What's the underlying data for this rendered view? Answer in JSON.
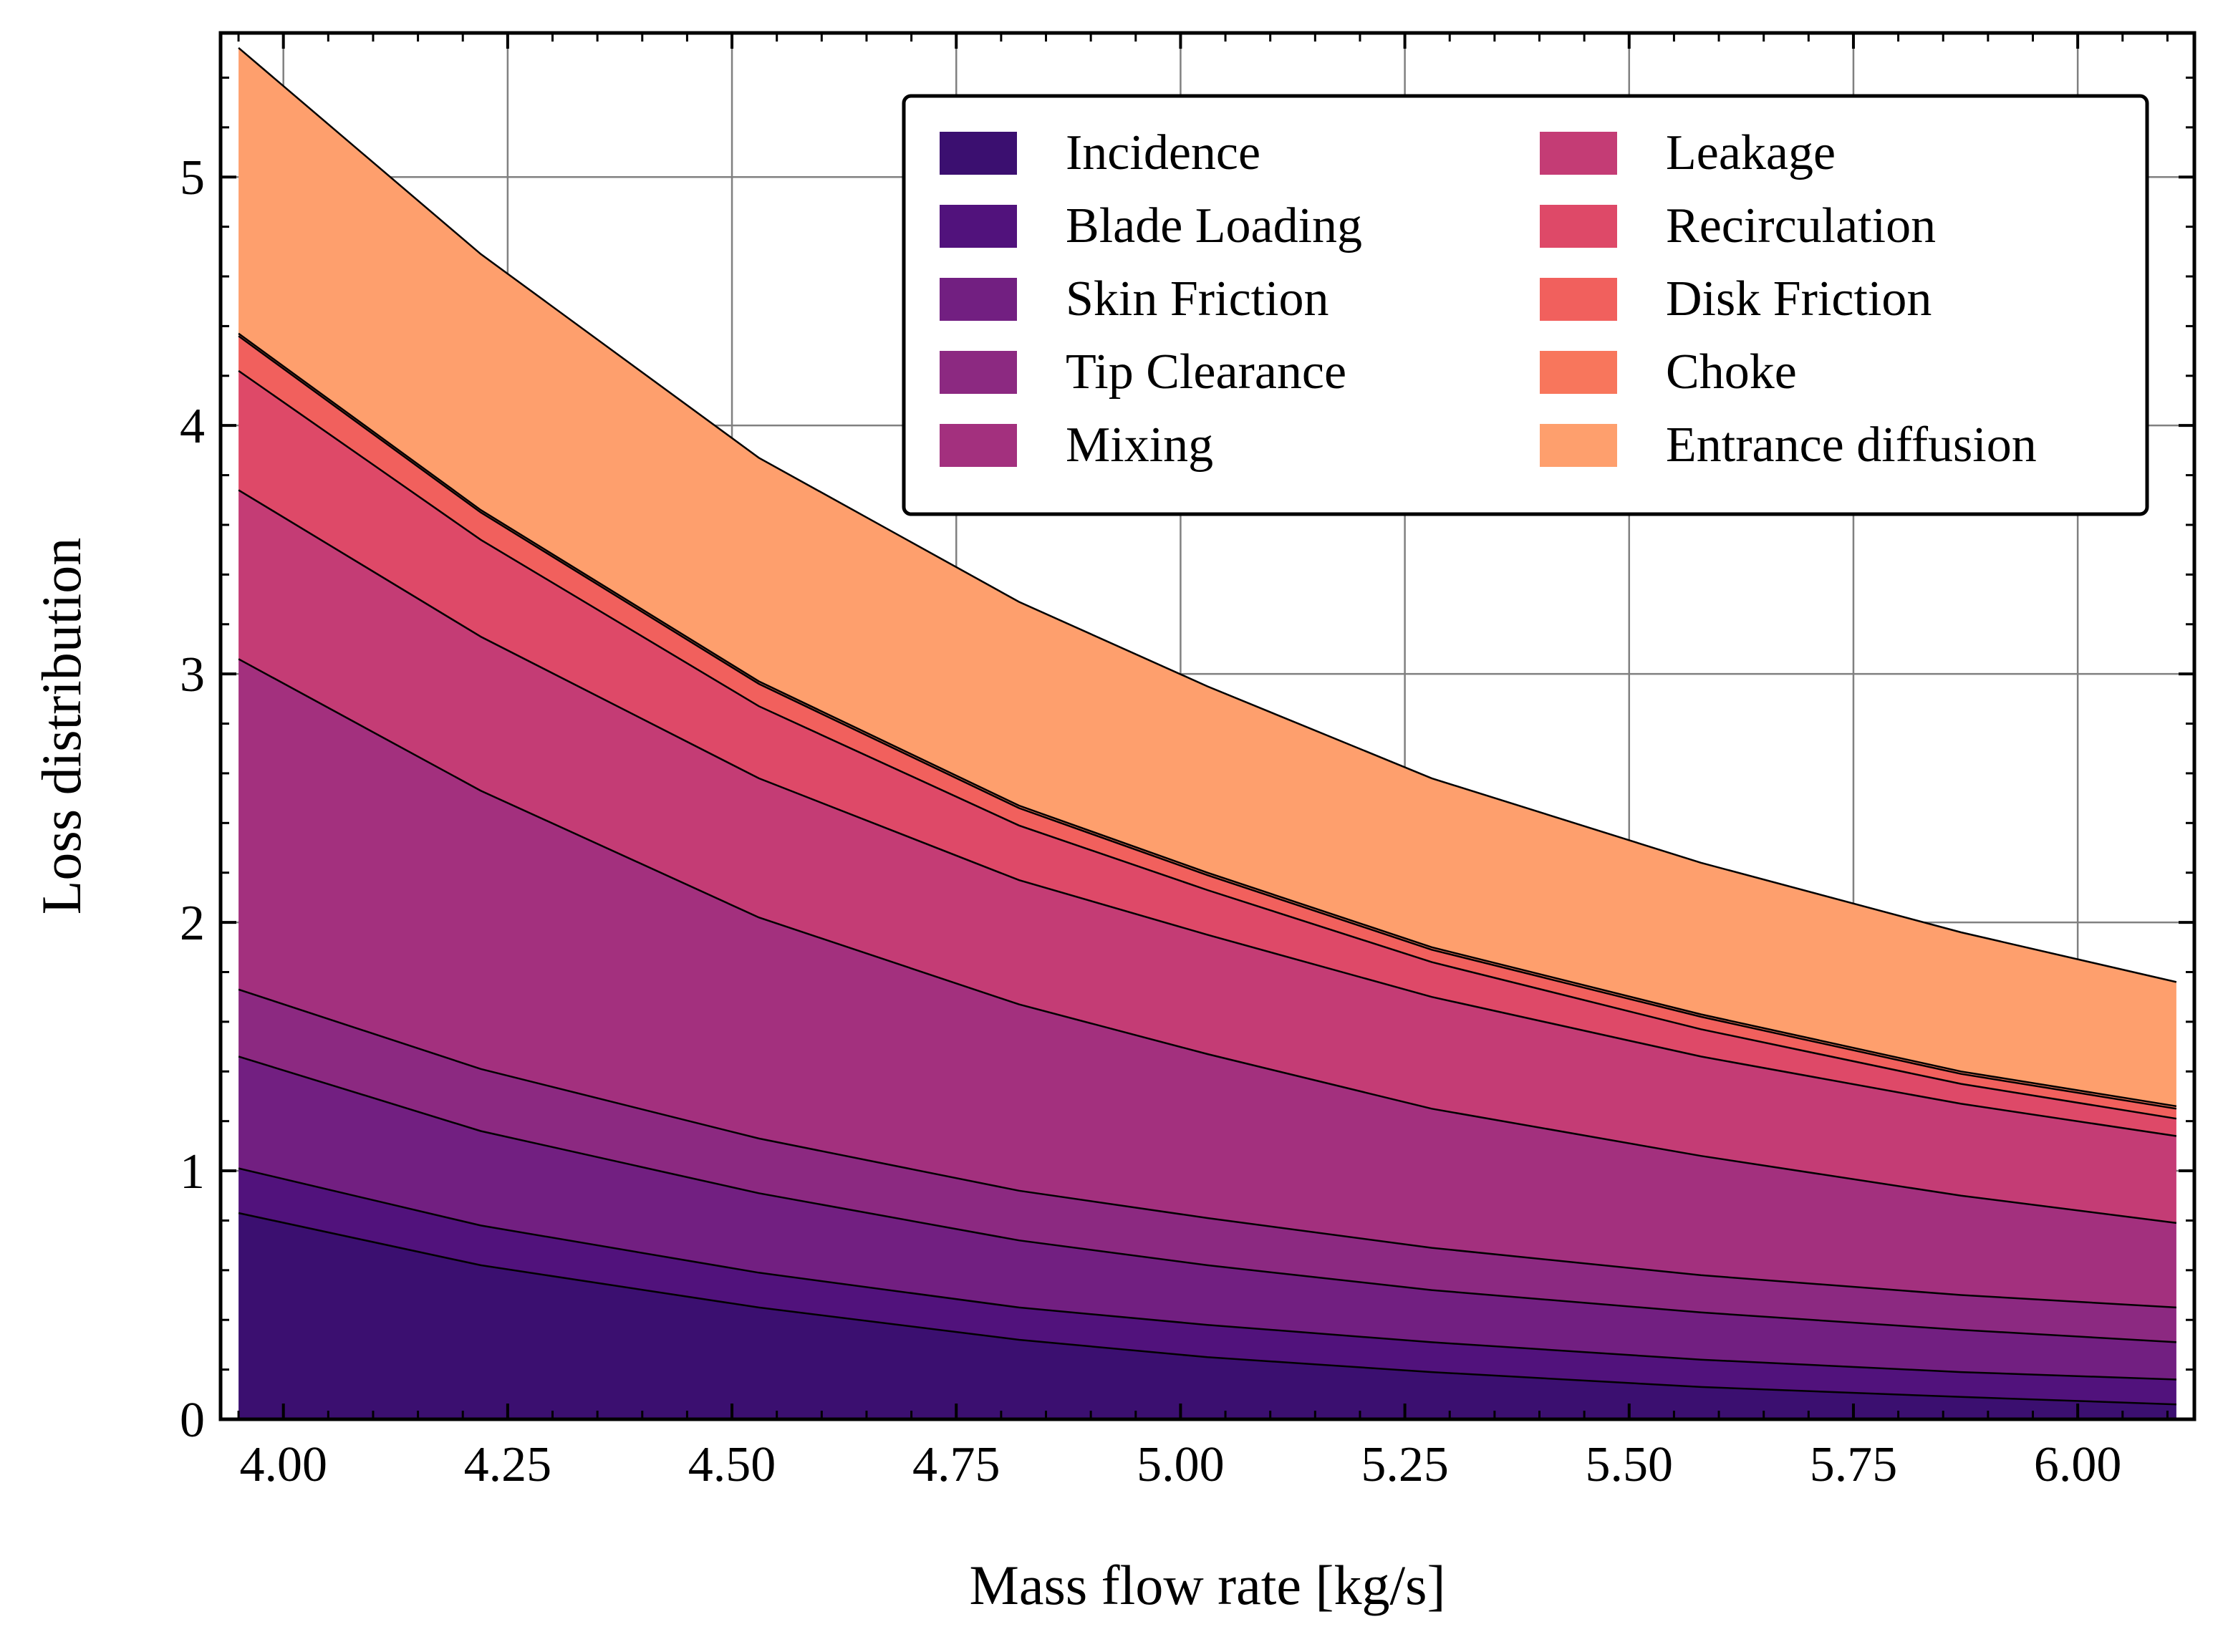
{
  "chart_data": {
    "type": "area",
    "stacked": true,
    "xlabel": "Mass flow rate [kg/s]",
    "ylabel": "Loss distribution",
    "xlim": [
      3.93,
      6.13
    ],
    "ylim": [
      0,
      5.58
    ],
    "grid": true,
    "legend_position": "top-right",
    "legend_columns": 2,
    "x_ticks": [
      4.0,
      4.25,
      4.5,
      4.75,
      5.0,
      5.25,
      5.5,
      5.75,
      6.0
    ],
    "x_tick_labels": [
      "4.00",
      "4.25",
      "4.50",
      "4.75",
      "5.00",
      "5.25",
      "5.50",
      "5.75",
      "6.00"
    ],
    "y_ticks": [
      0,
      1,
      2,
      3,
      4,
      5
    ],
    "y_tick_labels": [
      "0",
      "1",
      "2",
      "3",
      "4",
      "5"
    ],
    "x": [
      3.95,
      4.22,
      4.53,
      4.82,
      5.03,
      5.28,
      5.58,
      5.87,
      6.11
    ],
    "series": [
      {
        "name": "Incidence",
        "color": "#3b0f70",
        "values": [
          0.83,
          0.62,
          0.45,
          0.32,
          0.25,
          0.19,
          0.13,
          0.09,
          0.06
        ]
      },
      {
        "name": "Blade Loading",
        "color": "#51127c",
        "values": [
          0.18,
          0.16,
          0.14,
          0.13,
          0.13,
          0.12,
          0.11,
          0.1,
          0.1
        ]
      },
      {
        "name": "Skin Friction",
        "color": "#721f81",
        "values": [
          0.45,
          0.38,
          0.32,
          0.27,
          0.24,
          0.21,
          0.19,
          0.17,
          0.15
        ]
      },
      {
        "name": "Tip Clearance",
        "color": "#8c2981",
        "values": [
          0.27,
          0.25,
          0.22,
          0.2,
          0.19,
          0.17,
          0.15,
          0.14,
          0.14
        ]
      },
      {
        "name": "Mixing",
        "color": "#a3307e",
        "values": [
          1.33,
          1.12,
          0.89,
          0.75,
          0.66,
          0.56,
          0.48,
          0.4,
          0.34
        ]
      },
      {
        "name": "Leakage",
        "color": "#c43c75",
        "values": [
          0.68,
          0.62,
          0.56,
          0.5,
          0.48,
          0.45,
          0.4,
          0.37,
          0.35
        ]
      },
      {
        "name": "Recirculation",
        "color": "#de4968",
        "values": [
          0.48,
          0.39,
          0.29,
          0.22,
          0.18,
          0.14,
          0.11,
          0.08,
          0.07
        ]
      },
      {
        "name": "Disk Friction",
        "color": "#f1605d",
        "values": [
          0.14,
          0.11,
          0.09,
          0.07,
          0.06,
          0.05,
          0.05,
          0.04,
          0.04
        ]
      },
      {
        "name": "Choke",
        "color": "#f8765c",
        "values": [
          0.01,
          0.01,
          0.01,
          0.01,
          0.01,
          0.01,
          0.01,
          0.01,
          0.01
        ]
      },
      {
        "name": "Entrance diffusion",
        "color": "#fe9f6d",
        "values": [
          1.15,
          1.03,
          0.9,
          0.82,
          0.75,
          0.68,
          0.61,
          0.56,
          0.5
        ]
      }
    ]
  }
}
